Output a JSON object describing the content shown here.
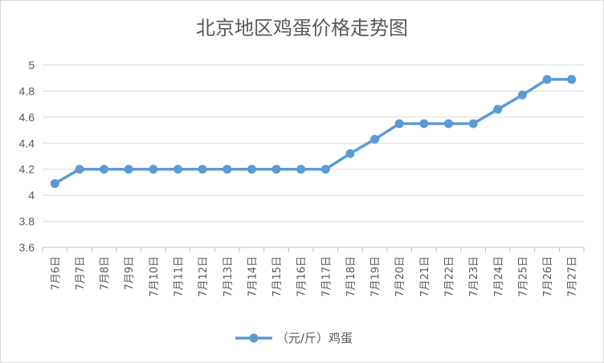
{
  "chart_data": {
    "type": "line",
    "title": "北京地区鸡蛋价格走势图",
    "categories": [
      "7月6日",
      "7月7日",
      "7月8日",
      "7月9日",
      "7月10日",
      "7月11日",
      "7月12日",
      "7月13日",
      "7月14日",
      "7月15日",
      "7月16日",
      "7月17日",
      "7月18日",
      "7月19日",
      "7月20日",
      "7月21日",
      "7月22日",
      "7月23日",
      "7月24日",
      "7月25日",
      "7月26日",
      "7月27日"
    ],
    "series": [
      {
        "name": "（元/斤）鸡蛋",
        "color": "#5b9bd5",
        "values": [
          4.09,
          4.2,
          4.2,
          4.2,
          4.2,
          4.2,
          4.2,
          4.2,
          4.2,
          4.2,
          4.2,
          4.2,
          4.32,
          4.43,
          4.55,
          4.55,
          4.55,
          4.55,
          4.66,
          4.77,
          4.89,
          4.89
        ]
      }
    ],
    "y_ticks": [
      "3.6",
      "3.8",
      "4",
      "4.2",
      "4.4",
      "4.6",
      "4.8",
      "5"
    ],
    "ylim": [
      3.6,
      5.0
    ],
    "xlabel": "",
    "ylabel": "",
    "grid": "horizontal",
    "legend_position": "bottom"
  }
}
